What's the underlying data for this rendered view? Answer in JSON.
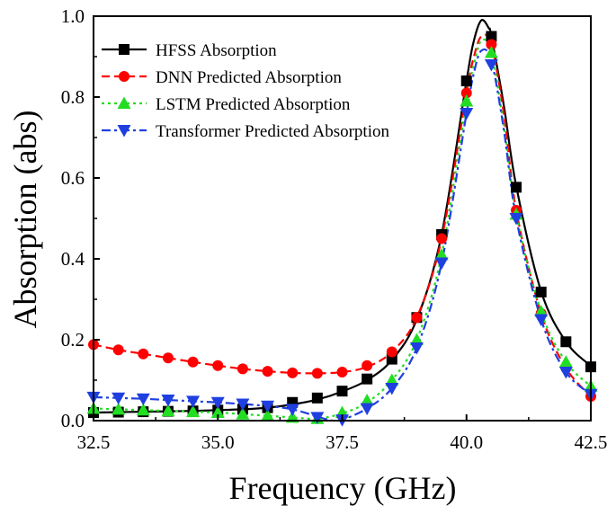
{
  "chart_data": {
    "type": "line",
    "title": "",
    "xlabel": "Frequency (GHz)",
    "ylabel": "Absorption (abs)",
    "xlim": [
      32.5,
      42.5
    ],
    "ylim": [
      0.0,
      1.0
    ],
    "xticks": [
      32.5,
      35.0,
      37.5,
      40.0,
      42.5
    ],
    "xtick_labels": [
      "32.5",
      "35.0",
      "37.5",
      "40.0",
      "42.5"
    ],
    "yticks": [
      0.0,
      0.2,
      0.4,
      0.6,
      0.8,
      1.0
    ],
    "ytick_labels": [
      "0.0",
      "0.2",
      "0.4",
      "0.6",
      "0.8",
      "1.0"
    ],
    "grid": false,
    "legend_position": "top-left",
    "series": [
      {
        "name": "HFSS Absorption",
        "color": "#000000",
        "dash": "solid",
        "marker": "square",
        "curve": [
          [
            32.5,
            0.02
          ],
          [
            33.0,
            0.021
          ],
          [
            33.5,
            0.022
          ],
          [
            34.0,
            0.023
          ],
          [
            34.5,
            0.024
          ],
          [
            35.0,
            0.026
          ],
          [
            35.5,
            0.028
          ],
          [
            36.0,
            0.032
          ],
          [
            36.5,
            0.04
          ],
          [
            37.0,
            0.052
          ],
          [
            37.5,
            0.072
          ],
          [
            38.0,
            0.1
          ],
          [
            38.5,
            0.15
          ],
          [
            39.0,
            0.25
          ],
          [
            39.5,
            0.46
          ],
          [
            40.0,
            0.84
          ],
          [
            40.15,
            0.94
          ],
          [
            40.3,
            0.99
          ],
          [
            40.45,
            0.97
          ],
          [
            40.5,
            0.95
          ],
          [
            40.75,
            0.78
          ],
          [
            41.0,
            0.58
          ],
          [
            41.5,
            0.32
          ],
          [
            42.0,
            0.195
          ],
          [
            42.5,
            0.135
          ]
        ],
        "markers": [
          [
            32.5,
            0.02
          ],
          [
            33.0,
            0.021
          ],
          [
            33.5,
            0.022
          ],
          [
            34.0,
            0.023
          ],
          [
            34.5,
            0.024
          ],
          [
            35.0,
            0.026
          ],
          [
            35.5,
            0.028
          ],
          [
            36.0,
            0.032
          ],
          [
            36.5,
            0.045
          ],
          [
            37.0,
            0.056
          ],
          [
            37.5,
            0.073
          ],
          [
            38.0,
            0.103
          ],
          [
            38.5,
            0.152
          ],
          [
            39.0,
            0.255
          ],
          [
            39.5,
            0.46
          ],
          [
            40.0,
            0.84
          ],
          [
            40.5,
            0.95
          ],
          [
            41.0,
            0.577
          ],
          [
            41.5,
            0.318
          ],
          [
            42.0,
            0.195
          ],
          [
            42.5,
            0.133
          ]
        ]
      },
      {
        "name": "DNN Predicted Absorption",
        "color": "#ff0000",
        "dash": "dash",
        "marker": "circle",
        "curve": [
          [
            32.5,
            0.188
          ],
          [
            33.0,
            0.175
          ],
          [
            33.5,
            0.165
          ],
          [
            34.0,
            0.155
          ],
          [
            34.5,
            0.145
          ],
          [
            35.0,
            0.136
          ],
          [
            35.5,
            0.128
          ],
          [
            36.0,
            0.122
          ],
          [
            36.5,
            0.118
          ],
          [
            37.0,
            0.117
          ],
          [
            37.5,
            0.12
          ],
          [
            38.0,
            0.133
          ],
          [
            38.5,
            0.17
          ],
          [
            39.0,
            0.255
          ],
          [
            39.5,
            0.45
          ],
          [
            40.0,
            0.81
          ],
          [
            40.15,
            0.9
          ],
          [
            40.3,
            0.95
          ],
          [
            40.5,
            0.93
          ],
          [
            40.75,
            0.76
          ],
          [
            41.0,
            0.52
          ],
          [
            41.5,
            0.265
          ],
          [
            42.0,
            0.13
          ],
          [
            42.5,
            0.06
          ]
        ],
        "markers": [
          [
            32.5,
            0.188
          ],
          [
            33.0,
            0.175
          ],
          [
            33.5,
            0.165
          ],
          [
            34.0,
            0.155
          ],
          [
            34.5,
            0.145
          ],
          [
            35.0,
            0.136
          ],
          [
            35.5,
            0.128
          ],
          [
            36.0,
            0.122
          ],
          [
            36.5,
            0.118
          ],
          [
            37.0,
            0.117
          ],
          [
            37.5,
            0.12
          ],
          [
            38.0,
            0.136
          ],
          [
            38.5,
            0.17
          ],
          [
            39.0,
            0.255
          ],
          [
            39.5,
            0.45
          ],
          [
            40.0,
            0.81
          ],
          [
            40.5,
            0.93
          ],
          [
            41.0,
            0.52
          ],
          [
            41.5,
            0.265
          ],
          [
            42.0,
            0.13
          ],
          [
            42.5,
            0.06
          ]
        ]
      },
      {
        "name": "LSTM Predicted Absorption",
        "color": "#22dd22",
        "dash": "dot",
        "marker": "triangle-up",
        "curve": [
          [
            32.5,
            0.03
          ],
          [
            33.0,
            0.028
          ],
          [
            33.5,
            0.026
          ],
          [
            34.0,
            0.024
          ],
          [
            34.5,
            0.022
          ],
          [
            35.0,
            0.02
          ],
          [
            35.5,
            0.016
          ],
          [
            36.0,
            0.012
          ],
          [
            36.5,
            0.008
          ],
          [
            37.0,
            0.005
          ],
          [
            37.5,
            0.018
          ],
          [
            38.0,
            0.045
          ],
          [
            38.5,
            0.1
          ],
          [
            39.0,
            0.2
          ],
          [
            39.5,
            0.41
          ],
          [
            40.0,
            0.79
          ],
          [
            40.15,
            0.88
          ],
          [
            40.3,
            0.94
          ],
          [
            40.5,
            0.91
          ],
          [
            40.75,
            0.73
          ],
          [
            41.0,
            0.51
          ],
          [
            41.5,
            0.27
          ],
          [
            42.0,
            0.145
          ],
          [
            42.5,
            0.085
          ]
        ],
        "markers": [
          [
            32.5,
            0.03
          ],
          [
            33.0,
            0.028
          ],
          [
            33.5,
            0.026
          ],
          [
            34.0,
            0.024
          ],
          [
            34.5,
            0.022
          ],
          [
            35.0,
            0.02
          ],
          [
            35.5,
            0.016
          ],
          [
            36.0,
            0.012
          ],
          [
            36.5,
            0.008
          ],
          [
            37.0,
            0.005
          ],
          [
            37.5,
            0.02
          ],
          [
            38.0,
            0.05
          ],
          [
            38.5,
            0.1
          ],
          [
            39.0,
            0.2
          ],
          [
            39.5,
            0.41
          ],
          [
            40.0,
            0.79
          ],
          [
            40.5,
            0.91
          ],
          [
            41.0,
            0.51
          ],
          [
            41.5,
            0.27
          ],
          [
            42.0,
            0.145
          ],
          [
            42.5,
            0.085
          ]
        ]
      },
      {
        "name": "Transformer Predicted Absorption",
        "color": "#1f3fe0",
        "dash": "dashdot",
        "marker": "triangle-down",
        "curve": [
          [
            32.5,
            0.058
          ],
          [
            33.0,
            0.056
          ],
          [
            33.5,
            0.054
          ],
          [
            34.0,
            0.051
          ],
          [
            34.5,
            0.048
          ],
          [
            35.0,
            0.045
          ],
          [
            35.5,
            0.041
          ],
          [
            36.0,
            0.036
          ],
          [
            36.5,
            0.028
          ],
          [
            37.0,
            0.01
          ],
          [
            37.3,
            0.0
          ],
          [
            37.5,
            0.002
          ],
          [
            38.0,
            0.03
          ],
          [
            38.5,
            0.08
          ],
          [
            39.0,
            0.18
          ],
          [
            39.5,
            0.39
          ],
          [
            40.0,
            0.76
          ],
          [
            40.15,
            0.86
          ],
          [
            40.3,
            0.915
          ],
          [
            40.5,
            0.89
          ],
          [
            40.75,
            0.72
          ],
          [
            41.0,
            0.5
          ],
          [
            41.5,
            0.25
          ],
          [
            42.0,
            0.12
          ],
          [
            42.5,
            0.065
          ]
        ],
        "markers": [
          [
            32.5,
            0.058
          ],
          [
            33.0,
            0.056
          ],
          [
            33.5,
            0.054
          ],
          [
            34.0,
            0.051
          ],
          [
            34.5,
            0.048
          ],
          [
            35.0,
            0.045
          ],
          [
            35.5,
            0.041
          ],
          [
            36.0,
            0.036
          ],
          [
            36.5,
            0.028
          ],
          [
            37.0,
            0.008
          ],
          [
            37.5,
            0.002
          ],
          [
            38.0,
            0.03
          ],
          [
            38.5,
            0.08
          ],
          [
            39.0,
            0.18
          ],
          [
            39.5,
            0.39
          ],
          [
            40.0,
            0.76
          ],
          [
            40.5,
            0.88
          ],
          [
            41.0,
            0.5
          ],
          [
            41.5,
            0.25
          ],
          [
            42.0,
            0.12
          ],
          [
            42.5,
            0.065
          ]
        ]
      }
    ]
  }
}
